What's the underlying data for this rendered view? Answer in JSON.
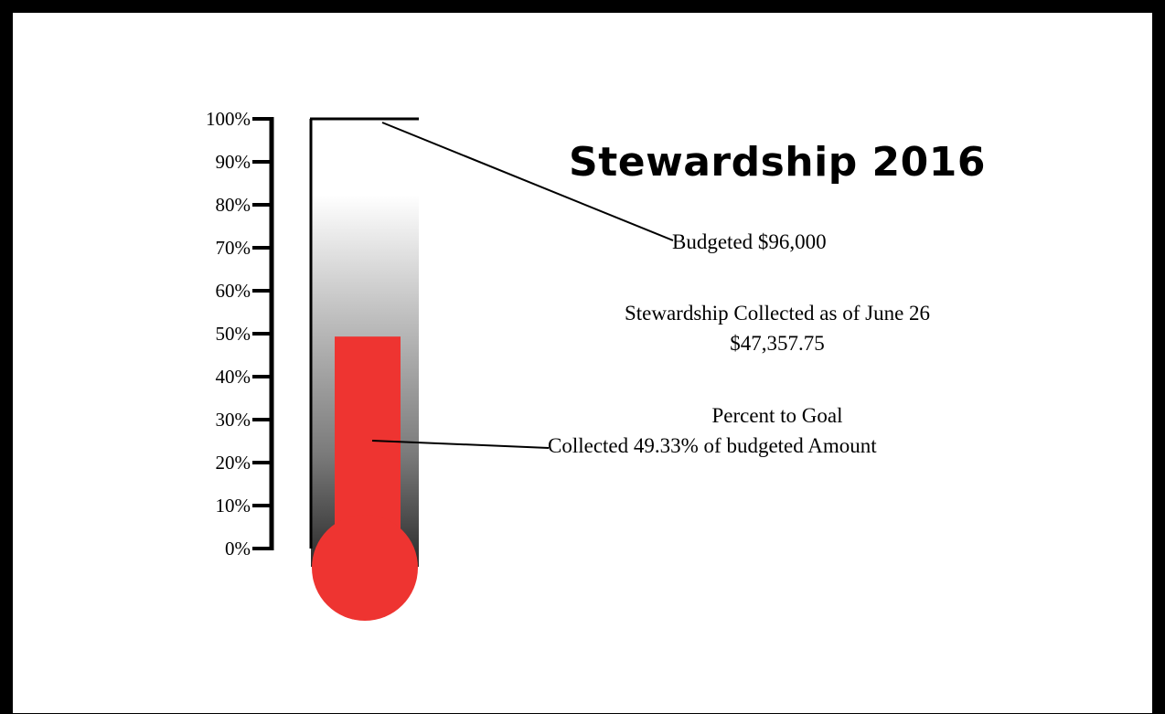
{
  "title": "Stewardship 2016",
  "budget_label": "Budgeted $96,000",
  "collected_heading": "Stewardship Collected as of June 26",
  "collected_amount": "$47,357.75",
  "percent_heading": "Percent to Goal",
  "percent_text": "Collected 49.33% of budgeted Amount",
  "colors": {
    "mercury": "#ee3431",
    "frame": "#000000"
  },
  "chart_data": {
    "type": "bar",
    "ticks": [
      "0%",
      "10%",
      "20%",
      "30%",
      "40%",
      "50%",
      "60%",
      "70%",
      "80%",
      "90%",
      "100%"
    ],
    "ylim": [
      0,
      100
    ],
    "values": [
      49.33
    ]
  }
}
